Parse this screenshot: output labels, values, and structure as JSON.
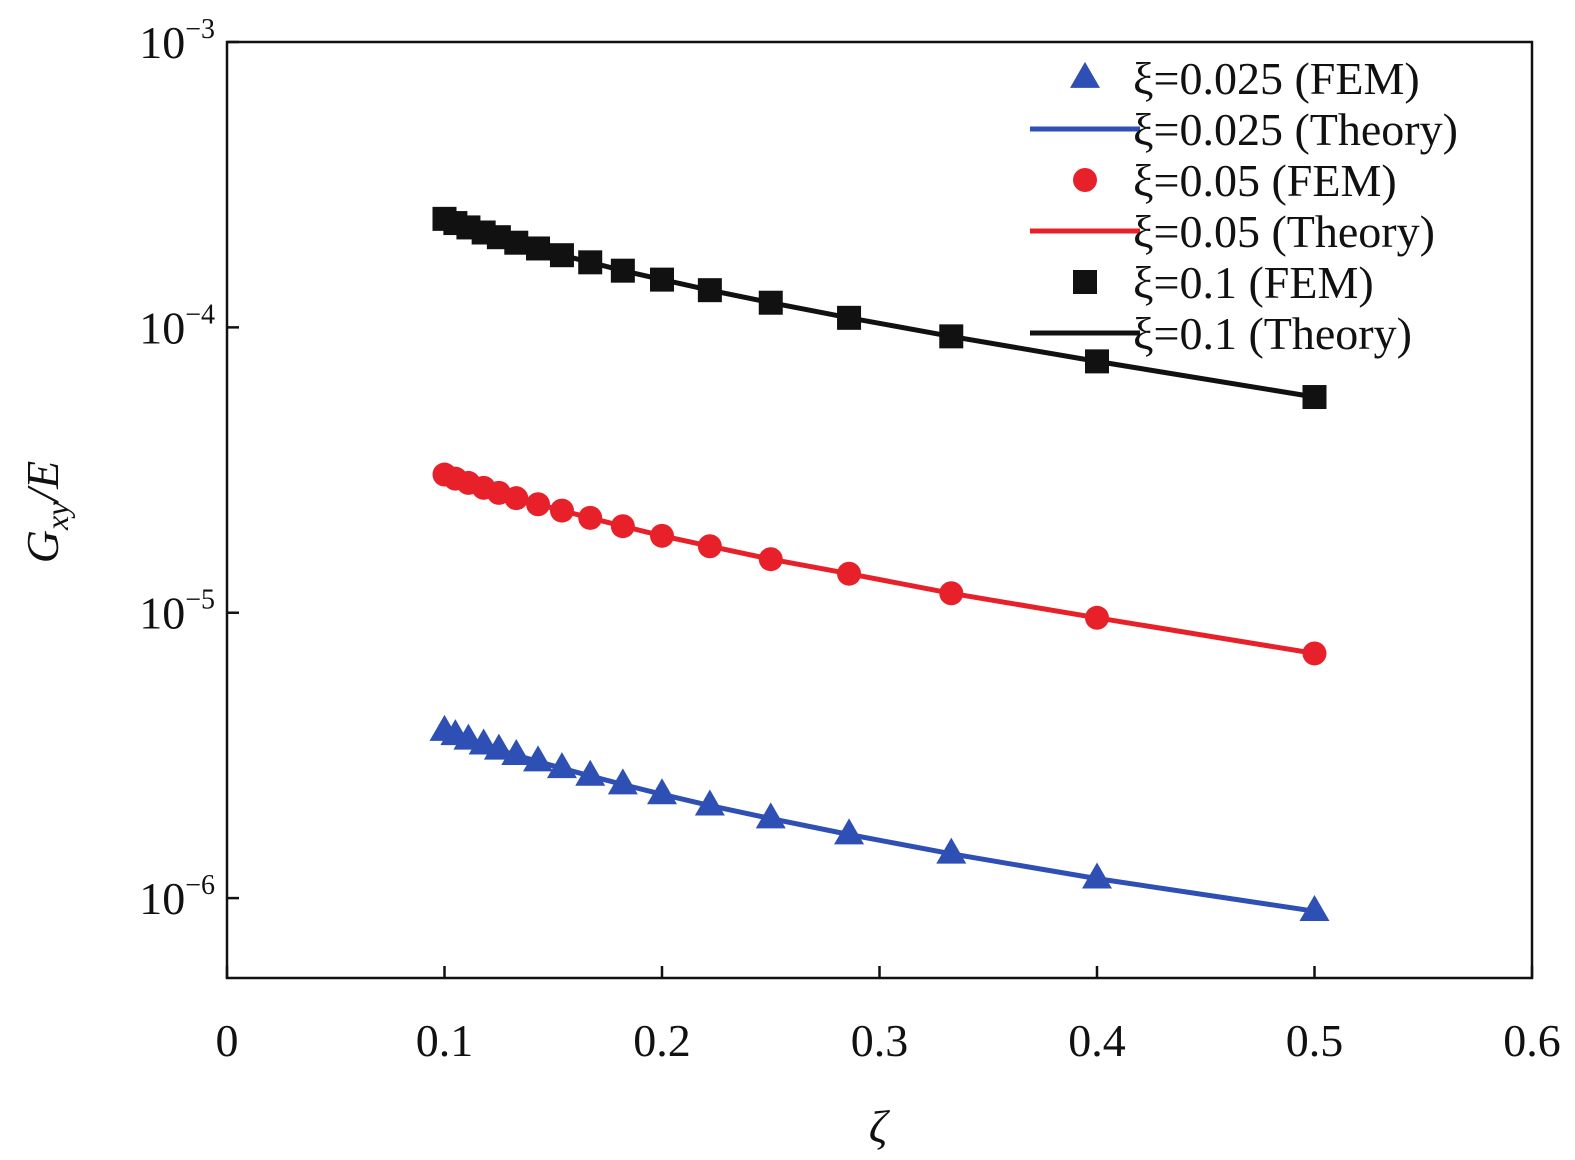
{
  "chart_data": {
    "type": "scatter",
    "title": "",
    "xlabel": "ζ",
    "ylabel_main": "G",
    "ylabel_sub": "xy",
    "ylabel_tail": "/E",
    "xlim": [
      0,
      0.6
    ],
    "ylim_log10": [
      -6.28,
      -3
    ],
    "y_scale": "log",
    "grid": false,
    "legend_position": "top-right",
    "x_ticks": [
      0,
      0.1,
      0.2,
      0.3,
      0.4,
      0.5,
      0.6
    ],
    "x_tick_labels": [
      "0",
      "0.1",
      "0.2",
      "0.3",
      "0.4",
      "0.5",
      "0.6"
    ],
    "y_ticks": [
      {
        "base": "10",
        "exp": "−3",
        "value": 0.001
      },
      {
        "base": "10",
        "exp": "−4",
        "value": 0.0001
      },
      {
        "base": "10",
        "exp": "−5",
        "value": 1e-05
      },
      {
        "base": "10",
        "exp": "−6",
        "value": 1e-06
      }
    ],
    "x": [
      0.1,
      0.105,
      0.111,
      0.118,
      0.125,
      0.133,
      0.143,
      0.154,
      0.167,
      0.182,
      0.2,
      0.222,
      0.25,
      0.286,
      0.333,
      0.4,
      0.5
    ],
    "series": [
      {
        "name": "ξ=0.025 (FEM)",
        "kind": "markers",
        "marker": "triangle",
        "color": "#2e4fb4",
        "values": [
          3.85e-06,
          3.72e-06,
          3.59e-06,
          3.45e-06,
          3.31e-06,
          3.17e-06,
          3.01e-06,
          2.85e-06,
          2.68e-06,
          2.5e-06,
          2.31e-06,
          2.11e-06,
          1.9e-06,
          1.67e-06,
          1.43e-06,
          1.17e-06,
          9e-07
        ]
      },
      {
        "name": "ξ=0.025 (Theory)",
        "kind": "line",
        "color": "#2e4fb4",
        "values": [
          3.85e-06,
          3.72e-06,
          3.59e-06,
          3.45e-06,
          3.31e-06,
          3.17e-06,
          3.01e-06,
          2.85e-06,
          2.68e-06,
          2.5e-06,
          2.31e-06,
          2.11e-06,
          1.9e-06,
          1.67e-06,
          1.43e-06,
          1.17e-06,
          9e-07
        ]
      },
      {
        "name": "ξ=0.05 (FEM)",
        "kind": "markers",
        "marker": "circle",
        "color": "#e8202a",
        "values": [
          3.05e-05,
          2.95e-05,
          2.85e-05,
          2.74e-05,
          2.63e-05,
          2.52e-05,
          2.4e-05,
          2.28e-05,
          2.15e-05,
          2.01e-05,
          1.86e-05,
          1.71e-05,
          1.54e-05,
          1.37e-05,
          1.17e-05,
          9.6e-06,
          7.2e-06
        ]
      },
      {
        "name": "ξ=0.05 (Theory)",
        "kind": "line",
        "color": "#e8202a",
        "values": [
          3.05e-05,
          2.95e-05,
          2.85e-05,
          2.74e-05,
          2.63e-05,
          2.52e-05,
          2.4e-05,
          2.28e-05,
          2.15e-05,
          2.01e-05,
          1.86e-05,
          1.71e-05,
          1.54e-05,
          1.37e-05,
          1.17e-05,
          9.6e-06,
          7.2e-06
        ]
      },
      {
        "name": "ξ=0.1 (FEM)",
        "kind": "markers",
        "marker": "square",
        "color": "#111111",
        "values": [
          0.00024,
          0.000232,
          0.000224,
          0.000215,
          0.000207,
          0.000198,
          0.000189,
          0.000179,
          0.000169,
          0.000158,
          0.000147,
          0.000135,
          0.000122,
          0.000108,
          9.3e-05,
          7.6e-05,
          5.7e-05
        ]
      },
      {
        "name": "ξ=0.1 (Theory)",
        "kind": "line",
        "color": "#111111",
        "values": [
          0.00024,
          0.000232,
          0.000224,
          0.000215,
          0.000207,
          0.000198,
          0.000189,
          0.000179,
          0.000169,
          0.000158,
          0.000147,
          0.000135,
          0.000122,
          0.000108,
          9.3e-05,
          7.6e-05,
          5.7e-05
        ]
      }
    ]
  }
}
